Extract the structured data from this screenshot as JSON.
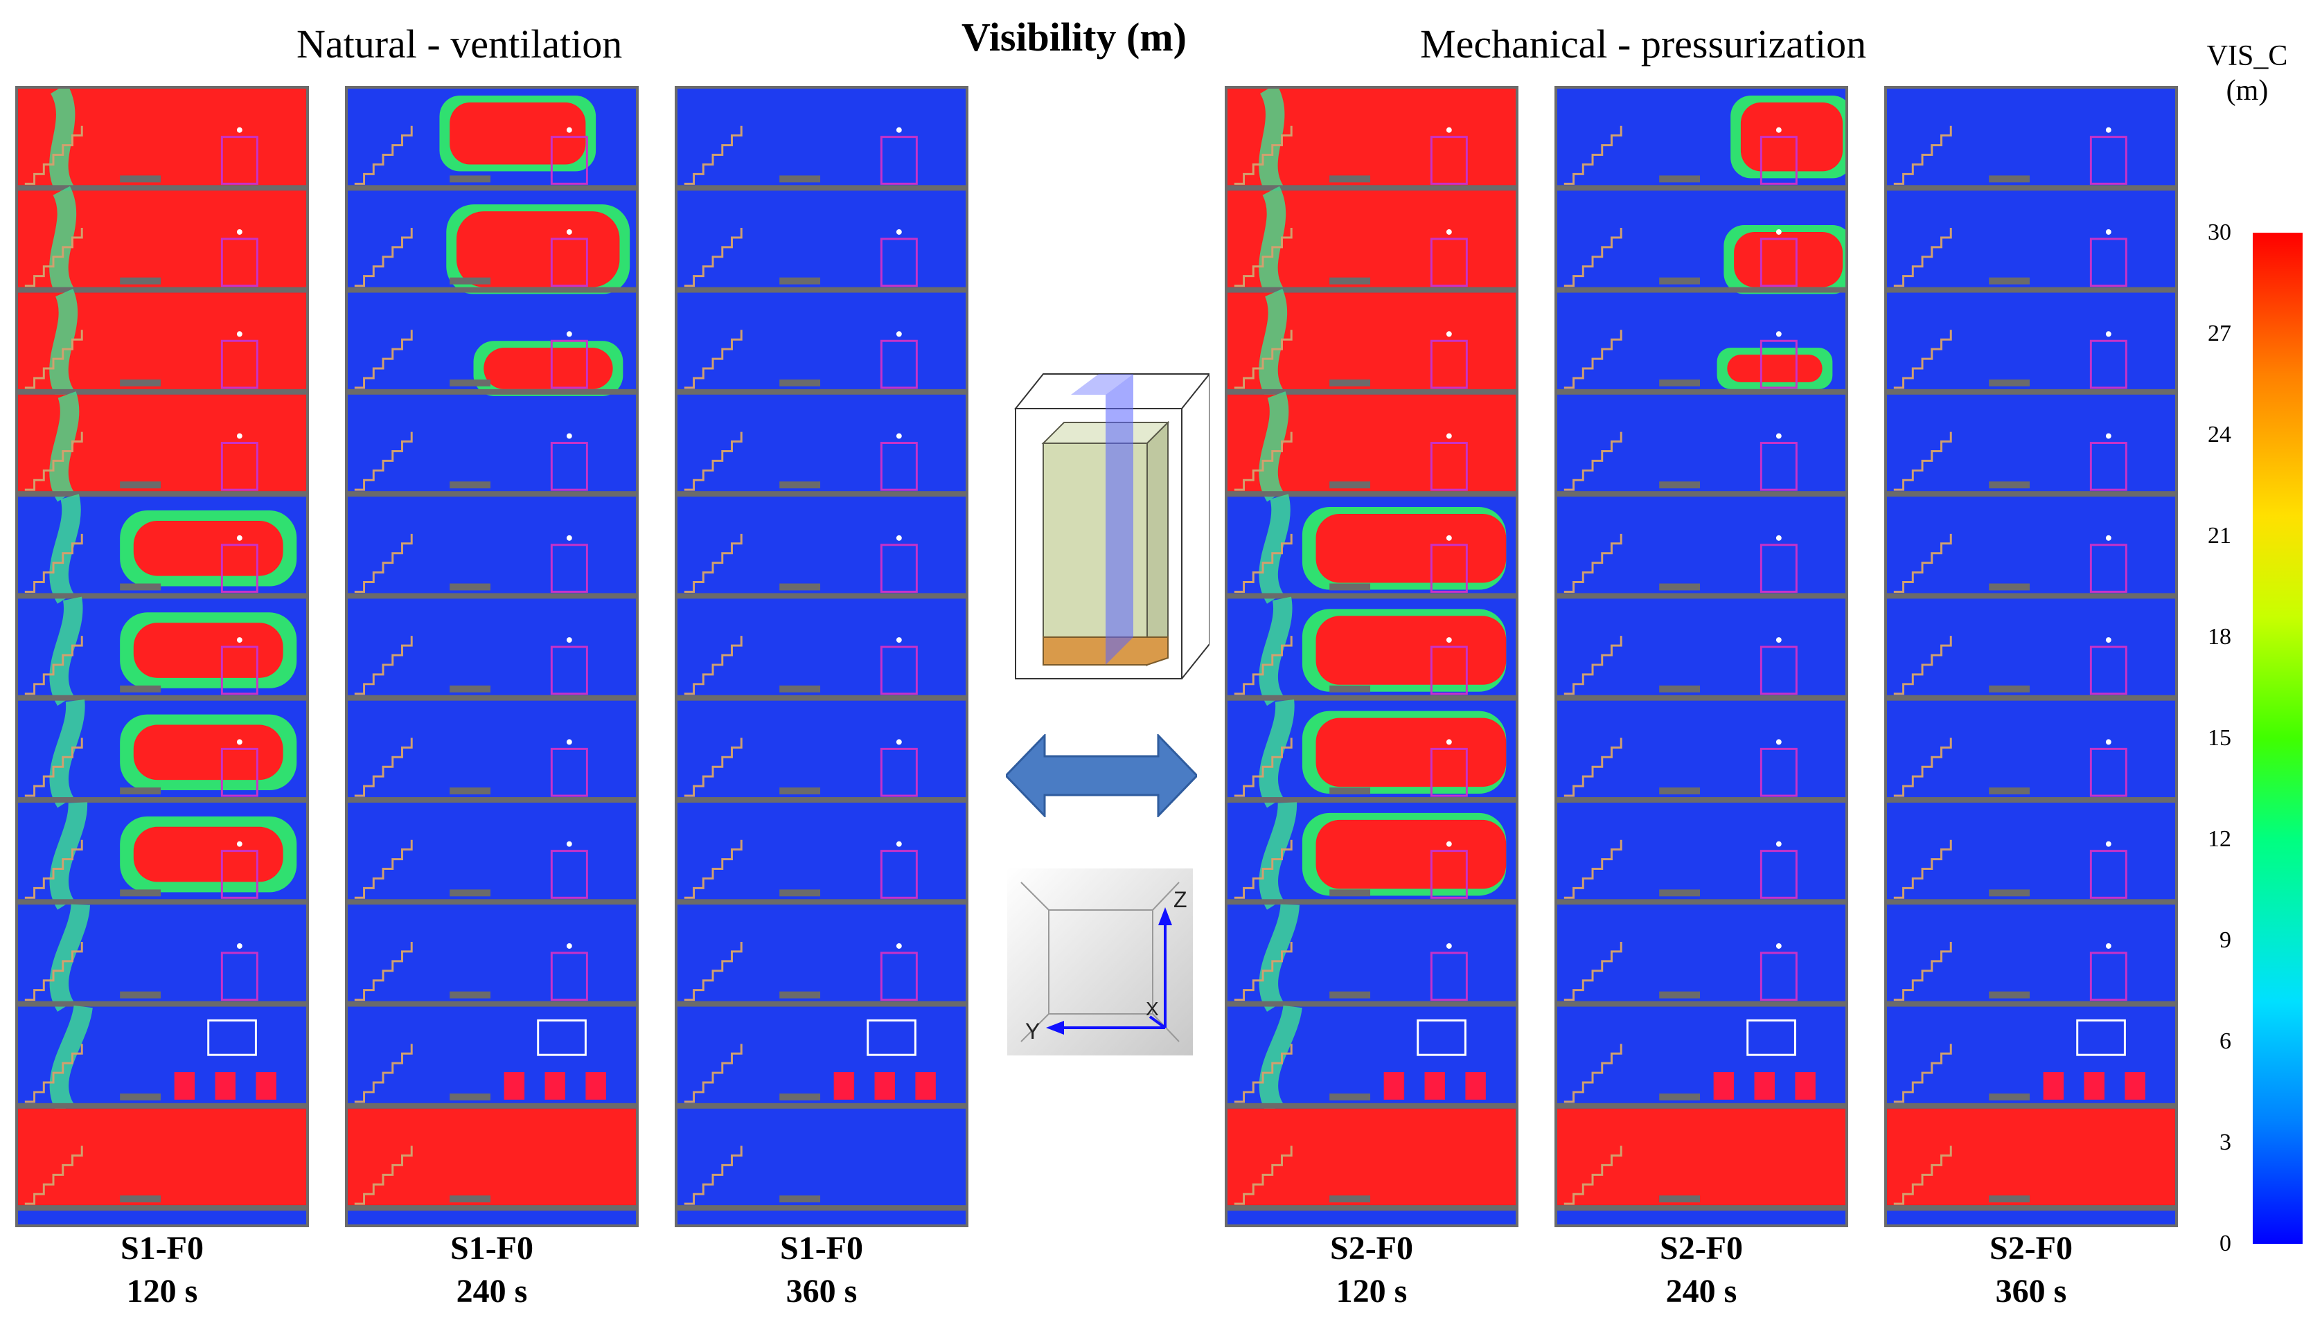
{
  "titles": {
    "left": "Natural - ventilation",
    "center": "Visibility (m)",
    "right": "Mechanical  - pressurization"
  },
  "colorbar": {
    "label_line1": "VIS_C",
    "label_line2": "(m)",
    "ticks": [
      "30",
      "27",
      "24",
      "21",
      "18",
      "15",
      "12",
      "9",
      "6",
      "3",
      "0"
    ],
    "min": 0,
    "max": 30
  },
  "panels": [
    {
      "scenario": "S1-F0",
      "time": "120 s"
    },
    {
      "scenario": "S1-F0",
      "time": "240 s"
    },
    {
      "scenario": "S1-F0",
      "time": "360 s"
    },
    {
      "scenario": "S2-F0",
      "time": "120 s"
    },
    {
      "scenario": "S2-F0",
      "time": "240 s"
    },
    {
      "scenario": "S2-F0",
      "time": "360 s"
    }
  ],
  "axes": {
    "z": "Z",
    "y": "Y",
    "x": "X"
  },
  "colors": {
    "high_visibility": "#ff0000",
    "low_visibility": "#1e3cf0",
    "wall": "#6b6b6b",
    "stair": "#d2a06e",
    "door": "#c832c8",
    "arrow": "#4a7cc4"
  }
}
